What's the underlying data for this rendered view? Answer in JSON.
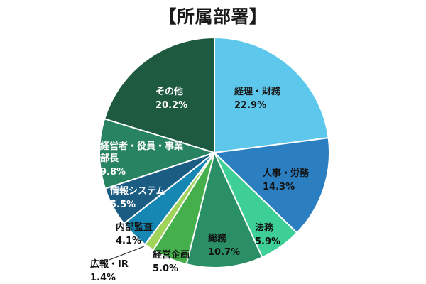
{
  "chart_data": {
    "type": "pie",
    "title": "【所属部署】",
    "slices": [
      {
        "label": "経理・財務",
        "value": 22.9,
        "display": "22.9%",
        "color": "#5ec8ec"
      },
      {
        "label": "人事・労務",
        "value": 14.3,
        "display": "14.3%",
        "color": "#2b7fc1"
      },
      {
        "label": "法務",
        "value": 5.9,
        "display": "5.9%",
        "color": "#3ecf96"
      },
      {
        "label": "総務",
        "value": 10.7,
        "display": "10.7%",
        "color": "#2a8f65"
      },
      {
        "label": "経営企画",
        "value": 5.0,
        "display": "5.0%",
        "color": "#45b04b"
      },
      {
        "label": "広報・IR",
        "value": 1.4,
        "display": "1.4%",
        "color": "#9fd35a"
      },
      {
        "label": "内部監査",
        "value": 4.1,
        "display": "4.1%",
        "color": "#1687b3"
      },
      {
        "label": "情報システム",
        "value": 5.5,
        "display": "5.5%",
        "color": "#1b5c83"
      },
      {
        "label": "経営者・役員・事業部長",
        "value": 9.8,
        "display": "9.8%",
        "color": "#278360"
      },
      {
        "label": "その他",
        "value": 20.2,
        "display": "20.2%",
        "color": "#1e5a3f"
      }
    ]
  }
}
